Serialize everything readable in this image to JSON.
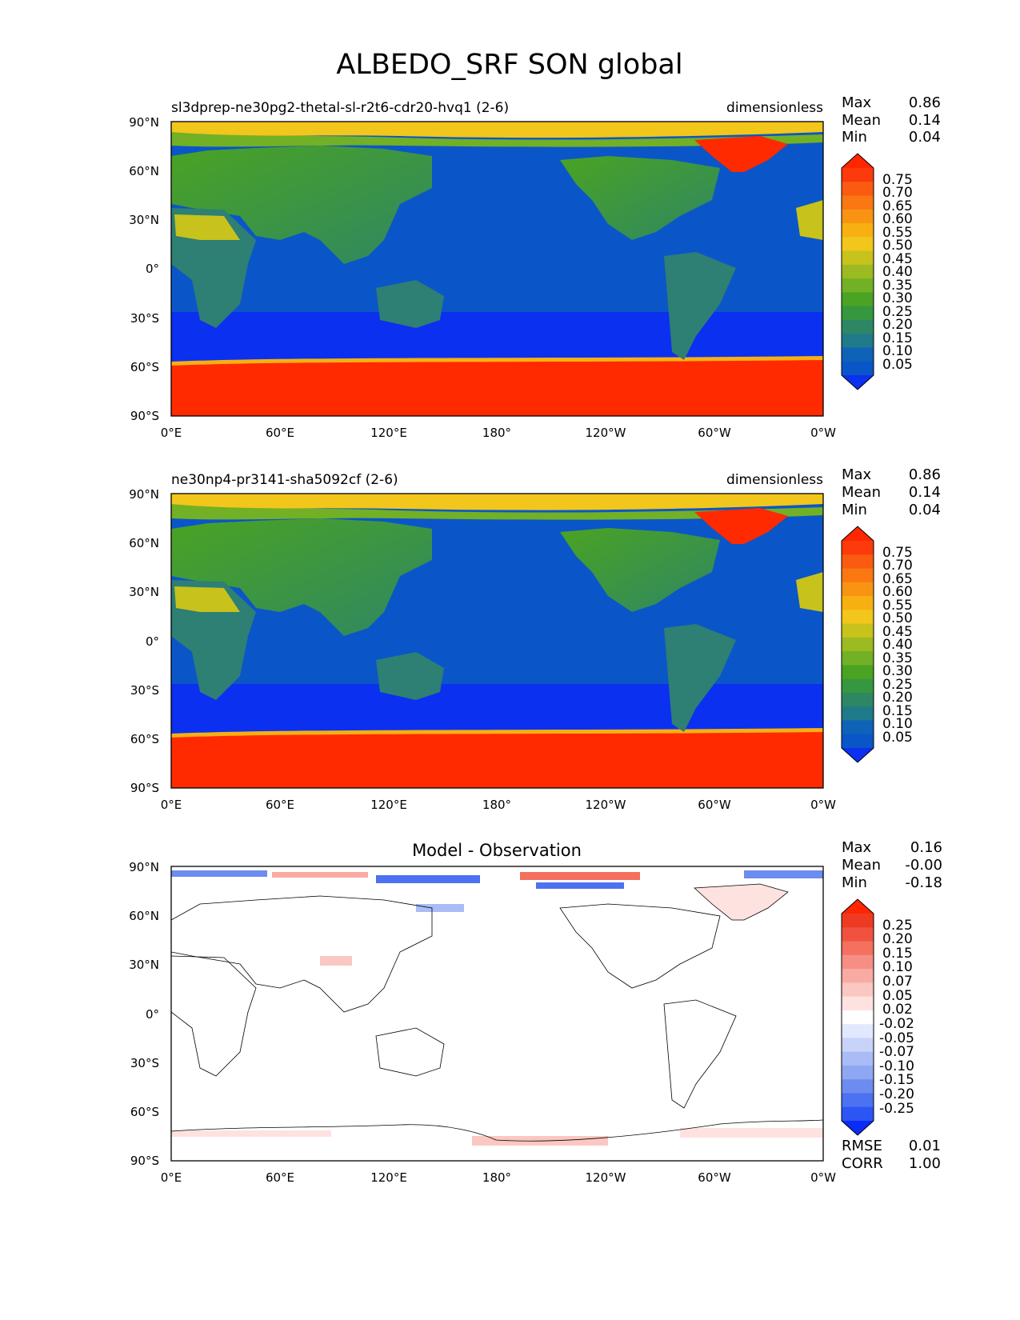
{
  "figure_title": "ALBEDO_SRF SON global",
  "colors": {
    "test_ref_levels": [
      "#0b30f0",
      "#0a56c8",
      "#0e63b9",
      "#1f7a8a",
      "#2e8764",
      "#35973f",
      "#4aa322",
      "#72b026",
      "#9cba21",
      "#c7c21c",
      "#f2c61a",
      "#f7b012",
      "#f89412",
      "#fa7712",
      "#fb5b10",
      "#fc3a0c",
      "#ff2600"
    ],
    "diff_levels": [
      "#0a2cf7",
      "#2c56f4",
      "#4c71f1",
      "#6d8cef",
      "#8fa7f3",
      "#aabcf6",
      "#c8d3f9",
      "#e2e8fd",
      "#ffffff",
      "#fde2e0",
      "#fbc7c2",
      "#f9aaa2",
      "#f68e83",
      "#f4705f",
      "#f1523f",
      "#ee3a22",
      "#ff2600"
    ],
    "land": "#2e7f74",
    "ocean": "#0a56c8",
    "southern_ocean": "#0b30f0",
    "ice": "#ff2a00"
  },
  "chart_data": [
    {
      "type": "heatmap",
      "title_left": "sl3dprep-ne30pg2-thetal-sl-r2t6-cdr20-hvq1 (2-6)",
      "title_right": "dimensionless",
      "stats": [
        {
          "label": "Max",
          "value": "0.86"
        },
        {
          "label": "Mean",
          "value": "0.14"
        },
        {
          "label": "Min",
          "value": "0.04"
        }
      ],
      "x_ticks": [
        "0°E",
        "60°E",
        "120°E",
        "180°",
        "120°W",
        "60°W",
        "0°W"
      ],
      "y_ticks": [
        "90°N",
        "60°N",
        "30°N",
        "0°",
        "30°S",
        "60°S",
        "90°S"
      ],
      "xlim": [
        0,
        360
      ],
      "ylim": [
        -90,
        90
      ],
      "colorbar_labels": [
        "0.75",
        "0.70",
        "0.65",
        "0.60",
        "0.55",
        "0.50",
        "0.45",
        "0.40",
        "0.35",
        "0.30",
        "0.25",
        "0.20",
        "0.15",
        "0.10",
        "0.05"
      ],
      "colorbar_levels": [
        0.05,
        0.1,
        0.15,
        0.2,
        0.25,
        0.3,
        0.35,
        0.4,
        0.45,
        0.5,
        0.55,
        0.6,
        0.65,
        0.7,
        0.75
      ],
      "colorbar_extend": "both"
    },
    {
      "type": "heatmap",
      "title_left": "ne30np4-pr3141-sha5092cf (2-6)",
      "title_right": "dimensionless",
      "stats": [
        {
          "label": "Max",
          "value": "0.86"
        },
        {
          "label": "Mean",
          "value": "0.14"
        },
        {
          "label": "Min",
          "value": "0.04"
        }
      ],
      "x_ticks": [
        "0°E",
        "60°E",
        "120°E",
        "180°",
        "120°W",
        "60°W",
        "0°W"
      ],
      "y_ticks": [
        "90°N",
        "60°N",
        "30°N",
        "0°",
        "30°S",
        "60°S",
        "90°S"
      ],
      "xlim": [
        0,
        360
      ],
      "ylim": [
        -90,
        90
      ],
      "colorbar_labels": [
        "0.75",
        "0.70",
        "0.65",
        "0.60",
        "0.55",
        "0.50",
        "0.45",
        "0.40",
        "0.35",
        "0.30",
        "0.25",
        "0.20",
        "0.15",
        "0.10",
        "0.05"
      ],
      "colorbar_levels": [
        0.05,
        0.1,
        0.15,
        0.2,
        0.25,
        0.3,
        0.35,
        0.4,
        0.45,
        0.5,
        0.55,
        0.6,
        0.65,
        0.7,
        0.75
      ],
      "colorbar_extend": "both"
    },
    {
      "type": "heatmap",
      "title_center": "Model - Observation",
      "stats": [
        {
          "label": "Max",
          "value": "0.16"
        },
        {
          "label": "Mean",
          "value": "-0.00"
        },
        {
          "label": "Min",
          "value": "-0.18"
        }
      ],
      "bottom_stats": [
        {
          "label": "RMSE",
          "value": "0.01"
        },
        {
          "label": "CORR",
          "value": "1.00"
        }
      ],
      "x_ticks": [
        "0°E",
        "60°E",
        "120°E",
        "180°",
        "120°W",
        "60°W",
        "0°W"
      ],
      "y_ticks": [
        "90°N",
        "60°N",
        "30°N",
        "0°",
        "30°S",
        "60°S",
        "90°S"
      ],
      "xlim": [
        0,
        360
      ],
      "ylim": [
        -90,
        90
      ],
      "colorbar_labels": [
        "0.25",
        "0.20",
        "0.15",
        "0.10",
        "0.07",
        "0.05",
        "0.02",
        "-0.02",
        "-0.05",
        "-0.07",
        "-0.10",
        "-0.15",
        "-0.20",
        "-0.25"
      ],
      "colorbar_levels": [
        -0.25,
        -0.2,
        -0.15,
        -0.1,
        -0.07,
        -0.05,
        -0.02,
        0.02,
        0.05,
        0.07,
        0.1,
        0.15,
        0.2,
        0.25
      ],
      "colorbar_extend": "both"
    }
  ]
}
